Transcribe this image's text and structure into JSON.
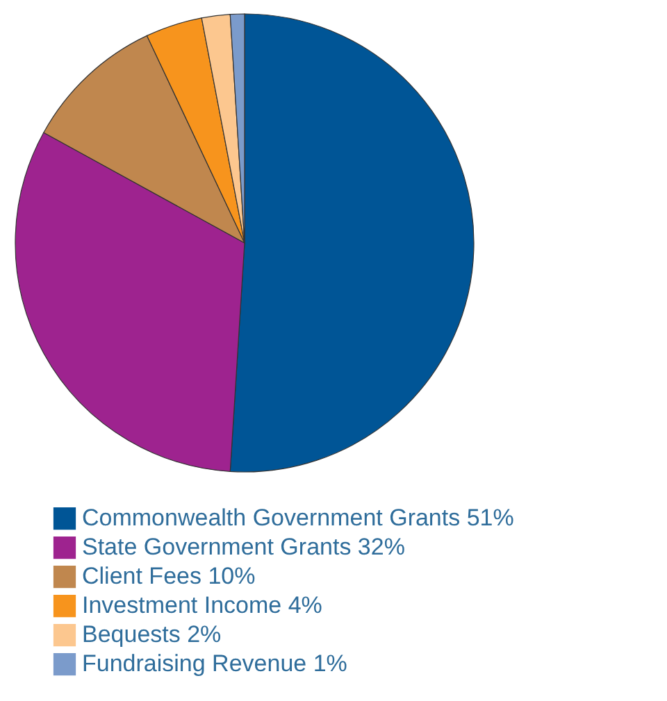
{
  "chart_data": {
    "type": "pie",
    "categories": [
      "Commonwealth Government Grants",
      "State Government Grants",
      "Client Fees",
      "Investment Income",
      "Bequests",
      "Fundraising Revenue"
    ],
    "values": [
      51,
      32,
      10,
      4,
      2,
      1
    ],
    "value_labels": [
      "51%",
      "32%",
      "10%",
      "4%",
      "2%",
      "1%"
    ],
    "colors": [
      "#005596",
      "#9e238f",
      "#c0874e",
      "#f7941d",
      "#fcc78f",
      "#7b9bcb"
    ],
    "legend": "bottom"
  }
}
